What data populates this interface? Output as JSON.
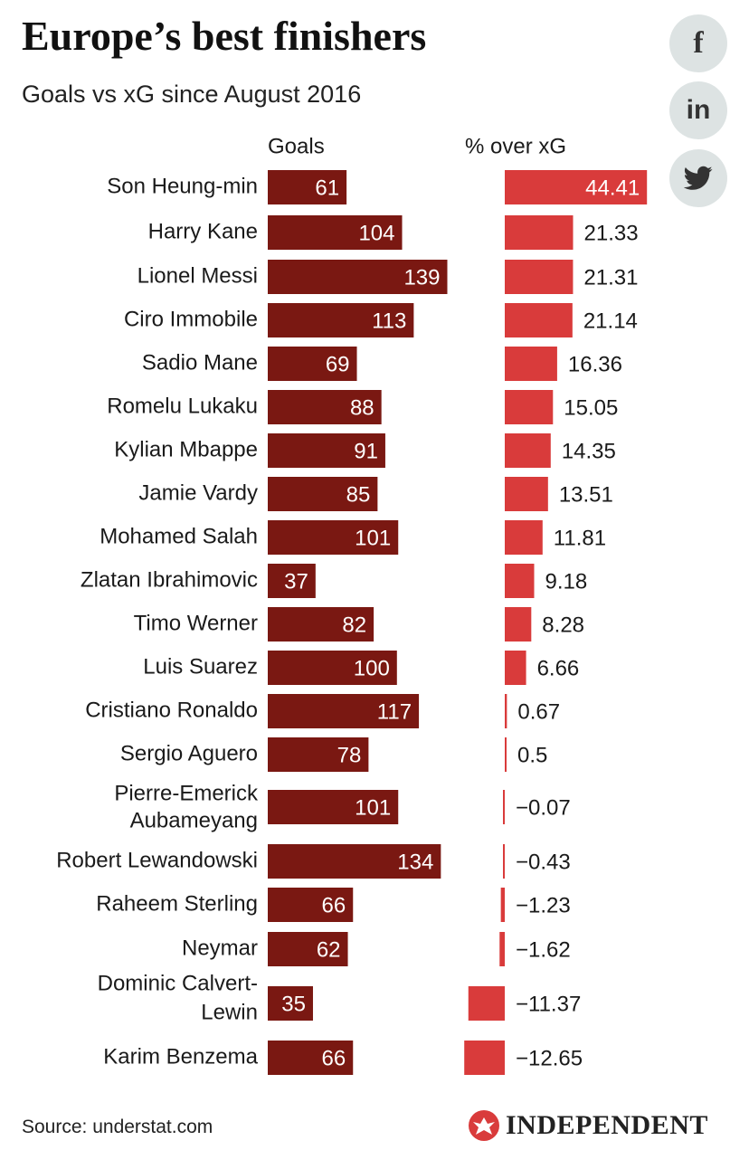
{
  "title": "Europe’s best finishers",
  "subtitle": "Goals vs xG since August 2016",
  "share": {
    "facebook": {
      "icon": "facebook-icon",
      "glyph": "f"
    },
    "linkedin": {
      "icon": "linkedin-icon",
      "glyph": "in"
    },
    "twitter": {
      "icon": "twitter-icon"
    }
  },
  "source": "Source: understat.com",
  "publisher": "INDEPENDENT",
  "colors": {
    "goals_bar": "#7a1812",
    "xg_bar": "#d93b3b",
    "share_bg": "#dde3e3"
  },
  "chart_data": {
    "type": "bar",
    "categories": [
      "Son Heung-min",
      "Harry Kane",
      "Lionel Messi",
      "Ciro Immobile",
      "Sadio Mane",
      "Romelu Lukaku",
      "Kylian Mbappe",
      "Jamie Vardy",
      "Mohamed Salah",
      "Zlatan Ibrahimovic",
      "Timo Werner",
      "Luis Suarez",
      "Cristiano Ronaldo",
      "Sergio Aguero",
      "Pierre-Emerick Aubameyang",
      "Robert Lewandowski",
      "Raheem Sterling",
      "Neymar",
      "Dominic Calvert-Lewin",
      "Karim Benzema"
    ],
    "category_lines": [
      [
        "Son Heung-min"
      ],
      [
        "Harry Kane"
      ],
      [
        "Lionel Messi"
      ],
      [
        "Ciro Immobile"
      ],
      [
        "Sadio Mane"
      ],
      [
        "Romelu Lukaku"
      ],
      [
        "Kylian Mbappe"
      ],
      [
        "Jamie Vardy"
      ],
      [
        "Mohamed Salah"
      ],
      [
        "Zlatan Ibrahimovic"
      ],
      [
        "Timo Werner"
      ],
      [
        "Luis Suarez"
      ],
      [
        "Cristiano Ronaldo"
      ],
      [
        "Sergio Aguero"
      ],
      [
        "Pierre-Emerick",
        "Aubameyang"
      ],
      [
        "Robert Lewandowski"
      ],
      [
        "Raheem Sterling"
      ],
      [
        "Neymar"
      ],
      [
        "Dominic Calvert-",
        "Lewin"
      ],
      [
        "Karim Benzema"
      ]
    ],
    "series": [
      {
        "name": "Goals",
        "values": [
          61,
          104,
          139,
          113,
          69,
          88,
          91,
          85,
          101,
          37,
          82,
          100,
          117,
          78,
          101,
          134,
          66,
          62,
          35,
          66
        ]
      },
      {
        "name": "% over xG",
        "values": [
          44.41,
          21.33,
          21.31,
          21.14,
          16.36,
          15.05,
          14.35,
          13.51,
          11.81,
          9.18,
          8.28,
          6.66,
          0.67,
          0.5,
          -0.07,
          -0.43,
          -1.23,
          -1.62,
          -11.37,
          -12.65
        ]
      }
    ],
    "value_labels": [
      [
        "61",
        "104",
        "139",
        "113",
        "69",
        "88",
        "91",
        "85",
        "101",
        "37",
        "82",
        "100",
        "117",
        "78",
        "101",
        "134",
        "66",
        "62",
        "35",
        "66"
      ],
      [
        "44.41",
        "21.33",
        "21.31",
        "21.14",
        "16.36",
        "15.05",
        "14.35",
        "13.51",
        "11.81",
        "9.18",
        "8.28",
        "6.66",
        "0.67",
        "0.5",
        "−0.07",
        "−0.43",
        "−1.23",
        "−1.62",
        "−11.37",
        "−12.65"
      ]
    ],
    "goals_range": [
      0,
      140
    ],
    "xg_range": [
      -12.65,
      44.41
    ],
    "grid": false,
    "legend": "none"
  }
}
